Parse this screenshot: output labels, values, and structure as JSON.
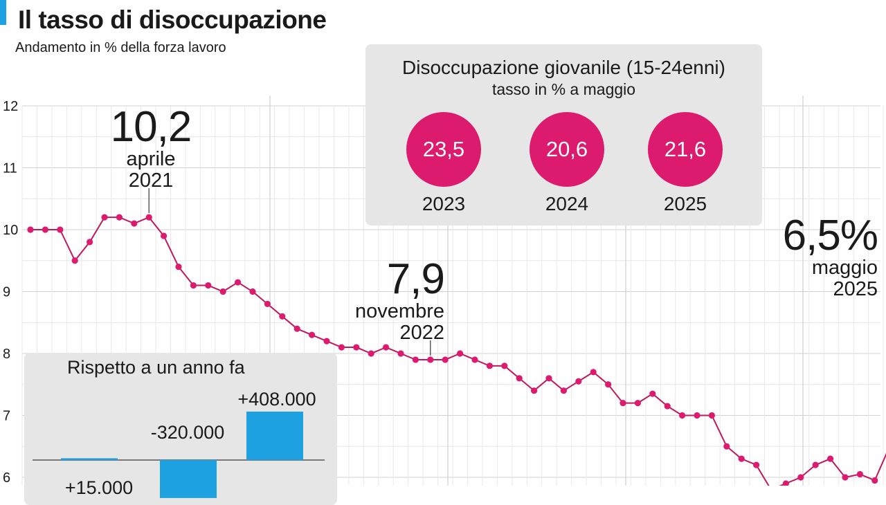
{
  "header": {
    "title": "Il tasso di disoccupazione",
    "subtitle": "Andamento in % della forza lavoro"
  },
  "colors": {
    "accent": "#1da1e0",
    "line": "#c2185b",
    "point": "#dc1a6e",
    "circle": "#dc1a6e",
    "bar": "#1da1e0",
    "panel": "#e6e6e6"
  },
  "chart_data": [
    {
      "type": "line",
      "title": "Il tasso di disoccupazione",
      "subtitle": "Andamento in % della forza lavoro",
      "ylim": [
        6,
        12
      ],
      "y_ticks": [
        "6",
        "7",
        "8",
        "9",
        "10",
        "11",
        "12"
      ],
      "grid": true,
      "series": [
        {
          "values": [
            10.0,
            10.0,
            10.0,
            9.5,
            9.8,
            10.2,
            10.2,
            10.1,
            10.2,
            9.9,
            9.4,
            9.1,
            9.1,
            9.0,
            9.15,
            9.0,
            8.8,
            8.6,
            8.4,
            8.3,
            8.2,
            8.1,
            8.1,
            8.0,
            8.1,
            8.0,
            7.9,
            7.9,
            7.9,
            8.0,
            7.9,
            7.8,
            7.8,
            7.6,
            7.4,
            7.6,
            7.4,
            7.55,
            7.7,
            7.5,
            7.2,
            7.2,
            7.35,
            7.15,
            7.0,
            7.0,
            7.0,
            6.5,
            6.3,
            6.2,
            5.8,
            5.9,
            6.0,
            6.2,
            6.3,
            6.0,
            6.05,
            5.95,
            6.5
          ]
        }
      ],
      "annotations": [
        {
          "value": "10,2",
          "month": "aprile",
          "year": "2021"
        },
        {
          "value": "7,9",
          "month": "novembre",
          "year": "2022"
        },
        {
          "value": "6,5%",
          "month": "maggio",
          "year": "2025"
        }
      ]
    },
    {
      "type": "bar",
      "title": "Disoccupazione giovanile (15-24enni)",
      "subtitle": "tasso in % a maggio",
      "categories": [
        "2023",
        "2024",
        "2025"
      ],
      "values": [
        "23,5",
        "20,6",
        "21,6"
      ]
    },
    {
      "type": "bar",
      "title": "Rispetto a un anno fa",
      "values": [
        15000,
        -320000,
        408000
      ],
      "labels": [
        "+15.000",
        "-320.000",
        "+408.000"
      ]
    }
  ]
}
